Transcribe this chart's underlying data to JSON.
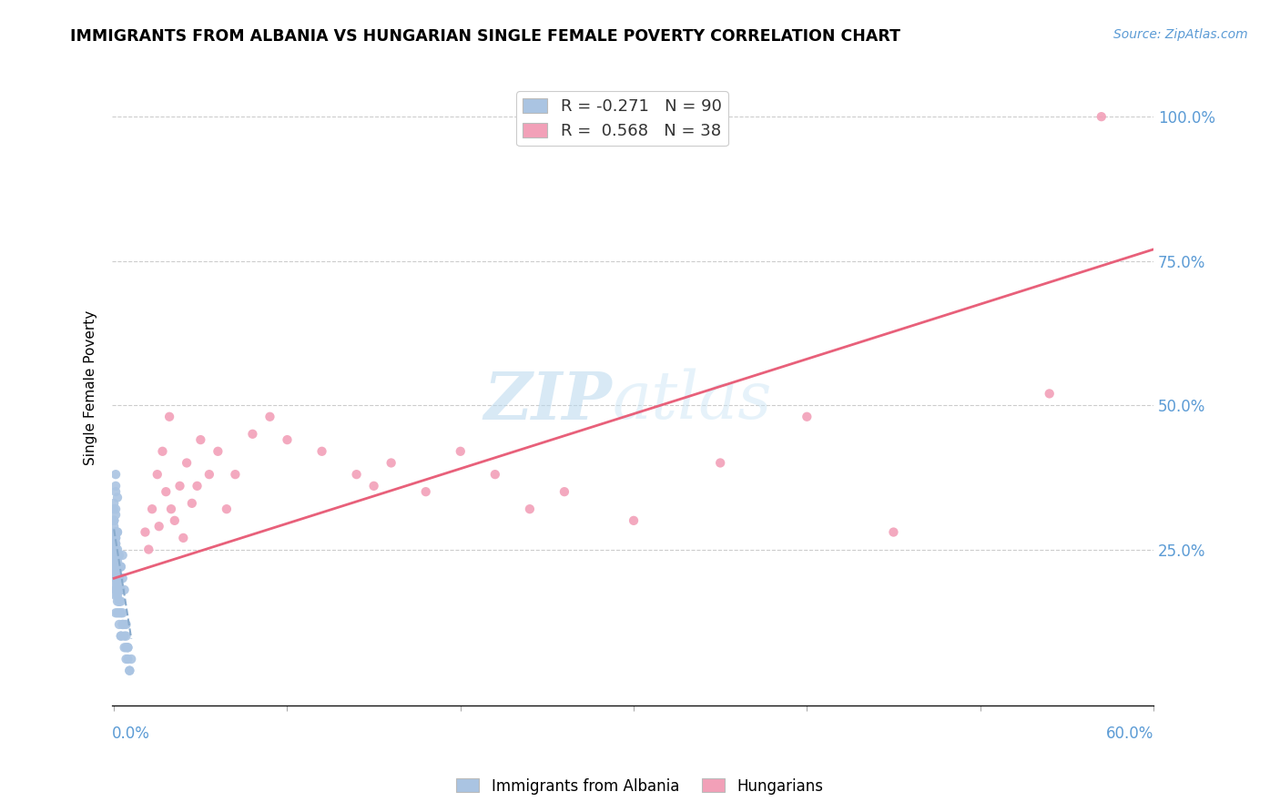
{
  "title": "IMMIGRANTS FROM ALBANIA VS HUNGARIAN SINGLE FEMALE POVERTY CORRELATION CHART",
  "source": "Source: ZipAtlas.com",
  "ylabel": "Single Female Poverty",
  "legend_blue_r": "-0.271",
  "legend_blue_n": "90",
  "legend_pink_r": "0.568",
  "legend_pink_n": "38",
  "blue_color": "#aac4e2",
  "pink_color": "#f2a0b8",
  "blue_line_color": "#88aacc",
  "pink_line_color": "#e8607a",
  "watermark_color": "#cce4f0",
  "blue_scatter_x": [
    0.0,
    0.001,
    0.0,
    0.001,
    0.0,
    0.001,
    0.001,
    0.002,
    0.001,
    0.0,
    0.001,
    0.0,
    0.001,
    0.002,
    0.001,
    0.0,
    0.001,
    0.001,
    0.002,
    0.001,
    0.0,
    0.001,
    0.002,
    0.001,
    0.0,
    0.001,
    0.001,
    0.0,
    0.002,
    0.001,
    0.001,
    0.0,
    0.001,
    0.001,
    0.002,
    0.001,
    0.0,
    0.001,
    0.001,
    0.002,
    0.001,
    0.0,
    0.001,
    0.002,
    0.001,
    0.0,
    0.001,
    0.001,
    0.002,
    0.001,
    0.003,
    0.002,
    0.003,
    0.002,
    0.003,
    0.004,
    0.003,
    0.004,
    0.005,
    0.004,
    0.003,
    0.002,
    0.003,
    0.004,
    0.005,
    0.004,
    0.003,
    0.002,
    0.003,
    0.004,
    0.005,
    0.006,
    0.004,
    0.003,
    0.005,
    0.004,
    0.006,
    0.005,
    0.007,
    0.006,
    0.007,
    0.008,
    0.006,
    0.007,
    0.008,
    0.007,
    0.009,
    0.008,
    0.01,
    0.009
  ],
  "blue_scatter_y": [
    0.32,
    0.35,
    0.3,
    0.28,
    0.33,
    0.36,
    0.38,
    0.34,
    0.31,
    0.29,
    0.27,
    0.3,
    0.25,
    0.28,
    0.26,
    0.24,
    0.27,
    0.23,
    0.25,
    0.22,
    0.3,
    0.32,
    0.28,
    0.26,
    0.24,
    0.22,
    0.2,
    0.25,
    0.23,
    0.21,
    0.28,
    0.26,
    0.24,
    0.22,
    0.2,
    0.18,
    0.23,
    0.21,
    0.19,
    0.17,
    0.25,
    0.23,
    0.21,
    0.19,
    0.17,
    0.22,
    0.2,
    0.18,
    0.16,
    0.14,
    0.24,
    0.22,
    0.2,
    0.18,
    0.16,
    0.22,
    0.2,
    0.18,
    0.24,
    0.22,
    0.2,
    0.18,
    0.16,
    0.14,
    0.12,
    0.18,
    0.16,
    0.14,
    0.12,
    0.1,
    0.2,
    0.18,
    0.16,
    0.14,
    0.12,
    0.1,
    0.08,
    0.14,
    0.12,
    0.1,
    0.08,
    0.06,
    0.12,
    0.1,
    0.08,
    0.06,
    0.04,
    0.08,
    0.06,
    0.04
  ],
  "pink_scatter_x": [
    0.018,
    0.022,
    0.03,
    0.035,
    0.025,
    0.04,
    0.028,
    0.032,
    0.02,
    0.045,
    0.038,
    0.026,
    0.033,
    0.042,
    0.05,
    0.055,
    0.06,
    0.048,
    0.07,
    0.065,
    0.08,
    0.09,
    0.1,
    0.12,
    0.14,
    0.15,
    0.16,
    0.18,
    0.2,
    0.22,
    0.24,
    0.26,
    0.3,
    0.35,
    0.4,
    0.45,
    0.54,
    0.57
  ],
  "pink_scatter_y": [
    0.28,
    0.32,
    0.35,
    0.3,
    0.38,
    0.27,
    0.42,
    0.48,
    0.25,
    0.33,
    0.36,
    0.29,
    0.32,
    0.4,
    0.44,
    0.38,
    0.42,
    0.36,
    0.38,
    0.32,
    0.45,
    0.48,
    0.44,
    0.42,
    0.38,
    0.36,
    0.4,
    0.35,
    0.42,
    0.38,
    0.32,
    0.35,
    0.3,
    0.4,
    0.48,
    0.28,
    0.52,
    1.0
  ],
  "blue_trend_x": [
    0.0,
    0.01
  ],
  "blue_trend_y": [
    0.285,
    0.095
  ],
  "pink_trend_x": [
    0.0,
    0.6
  ],
  "pink_trend_y": [
    0.2,
    0.77
  ],
  "xmin": -0.001,
  "xmax": 0.6,
  "ymin": -0.02,
  "ymax": 1.08,
  "ytick_positions": [
    0.25,
    0.5,
    0.75,
    1.0
  ],
  "ytick_labels": [
    "25.0%",
    "50.0%",
    "75.0%",
    "100.0%"
  ],
  "xtick_left_label": "0.0%",
  "xtick_right_label": "60.0%"
}
